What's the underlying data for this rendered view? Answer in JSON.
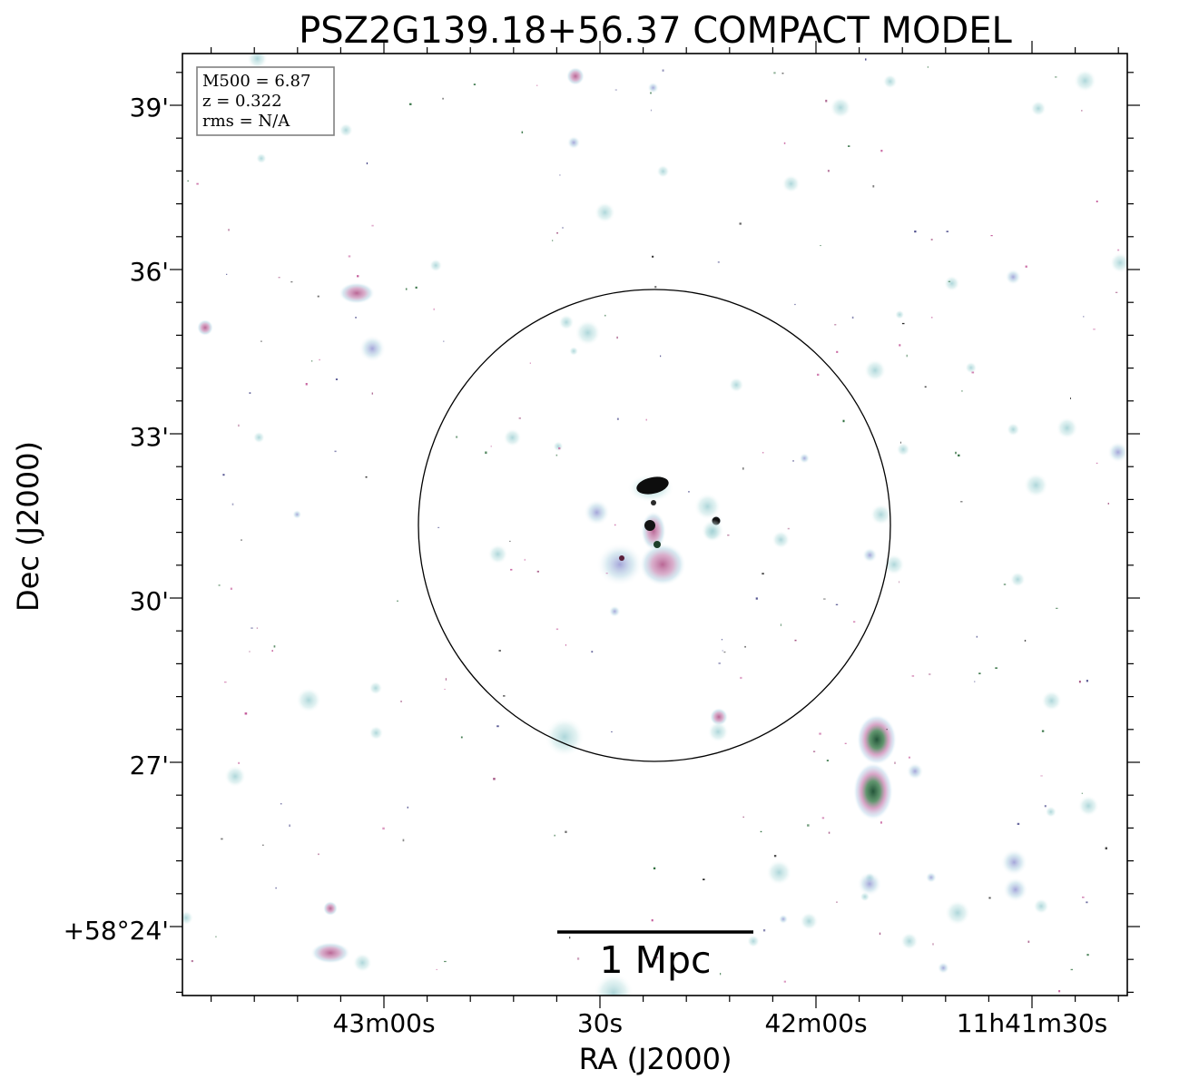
{
  "title": "PSZ2G139.18+56.37 COMPACT MODEL",
  "info_box": {
    "line1": "M500 = 6.87",
    "line2": "z = 0.322",
    "line3": "rms = N/A"
  },
  "scalebar_label": "1 Mpc",
  "axes": {
    "xlabel": "RA (J2000)",
    "ylabel": "Dec (J2000)",
    "x_ticks": [
      "43m00s",
      "30s",
      "42m00s",
      "11h41m30s"
    ],
    "y_ticks": [
      "39'",
      "36'",
      "33'",
      "30'",
      "27'",
      "+58°24'"
    ]
  },
  "colors": {
    "background": "#ffffff",
    "frame": "#000000",
    "halo": "#a8d5d8",
    "source_pink": "#c45a9a",
    "source_core": "#111111",
    "source_green": "#2e6e3e"
  }
}
